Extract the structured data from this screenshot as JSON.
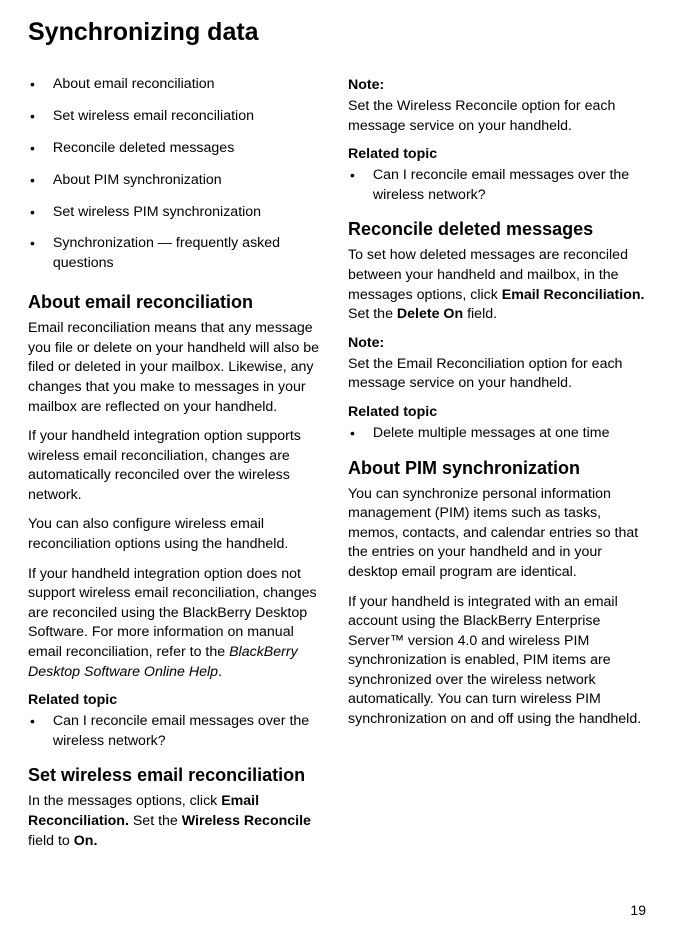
{
  "title": "Synchronizing data",
  "toc": [
    "About email reconciliation",
    "Set wireless email reconciliation",
    "Reconcile deleted messages",
    "About PIM synchronization",
    "Set wireless PIM synchronization",
    "Synchronization — frequently asked questions"
  ],
  "left": {
    "h_about": "About email reconciliation",
    "p1": "Email reconciliation means that any message you file or delete on your handheld will also be filed or deleted in your mailbox. Likewise, any changes that you make to messages in your mailbox are reflected on your handheld.",
    "p2": "If your handheld integration option supports wireless email reconciliation, changes are automatically reconciled over the wireless network.",
    "p3": "You can also configure wireless email reconciliation options using the handheld.",
    "p4a": "If your handheld integration option does not support wireless email reconciliation, changes are reconciled using the BlackBerry Desktop Software. For more information on manual email reconciliation, refer to the ",
    "p4b": "BlackBerry Desktop Software Online Help",
    "p4c": ".",
    "rel_label": "Related topic",
    "rel1": "Can I reconcile email messages over the wireless network?",
    "h_set": "Set wireless email reconciliation",
    "set_a": "In the messages options, click ",
    "set_b": "Email Reconciliation.",
    "set_c": " Set the ",
    "set_d": "Wireless Reconcile",
    "set_e": " field to ",
    "set_f": "On."
  },
  "right": {
    "note_label": "Note:",
    "note1": "Set the Wireless Reconcile option for each message service on your handheld.",
    "rel_label": "Related topic",
    "rel1": "Can I reconcile email messages over the wireless network?",
    "h_rec": "Reconcile deleted messages",
    "rec_a": "To set how deleted messages are reconciled between your handheld and mailbox, in the messages options, click ",
    "rec_b": "Email Reconciliation.",
    "rec_c": " Set the ",
    "rec_d": "Delete On",
    "rec_e": " field.",
    "note2": "Set the Email Reconciliation option for each message service on your handheld.",
    "rel2": "Delete multiple messages at one time",
    "h_pim": "About PIM synchronization",
    "pim1": "You can synchronize personal information management (PIM) items such as tasks, memos, contacts, and calendar entries so that the entries on your handheld and in your desktop email program are identical.",
    "pim2": "If your handheld is integrated with an email account using the BlackBerry Enterprise Server™ version 4.0 and wireless PIM synchronization is enabled, PIM items are synchronized over the wireless network automatically. You can turn wireless PIM synchronization on and off using the handheld."
  },
  "pagenum": "19"
}
